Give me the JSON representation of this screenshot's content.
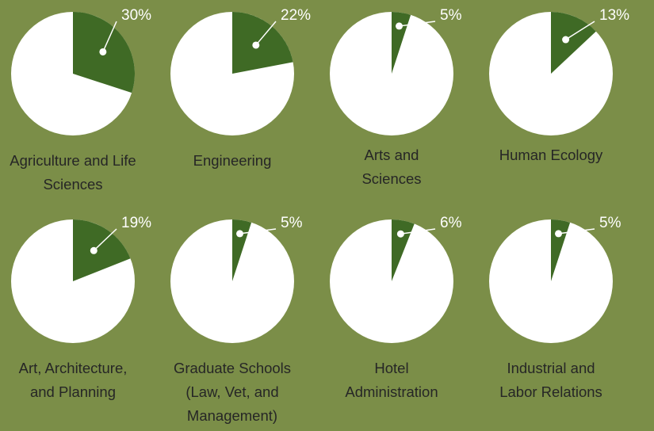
{
  "chart_data": [
    {
      "type": "pie",
      "title": "Agriculture and Life Sciences",
      "values": [
        30
      ],
      "value_labels": [
        "30%"
      ],
      "color": "#3f6a25"
    },
    {
      "type": "pie",
      "title": "Engineering",
      "values": [
        22
      ],
      "value_labels": [
        "22%"
      ],
      "color": "#3f6a25"
    },
    {
      "type": "pie",
      "title": "Arts and Sciences",
      "values": [
        5
      ],
      "value_labels": [
        "5%"
      ],
      "color": "#3f6a25"
    },
    {
      "type": "pie",
      "title": "Human Ecology",
      "values": [
        13
      ],
      "value_labels": [
        "13%"
      ],
      "color": "#3f6a25"
    },
    {
      "type": "pie",
      "title": "Art, Architecture, and Planning",
      "values": [
        19
      ],
      "value_labels": [
        "19%"
      ],
      "color": "#3f6a25"
    },
    {
      "type": "pie",
      "title": "Graduate Schools (Law, Vet, and Management)",
      "values": [
        5
      ],
      "value_labels": [
        "5%"
      ],
      "color": "#3f6a25"
    },
    {
      "type": "pie",
      "title": "Hotel Administration",
      "values": [
        6
      ],
      "value_labels": [
        "6%"
      ],
      "color": "#3f6a25"
    },
    {
      "type": "pie",
      "title": "Industrial and Labor Relations",
      "values": [
        5
      ],
      "value_labels": [
        "5%"
      ],
      "color": "#3f6a25"
    }
  ]
}
